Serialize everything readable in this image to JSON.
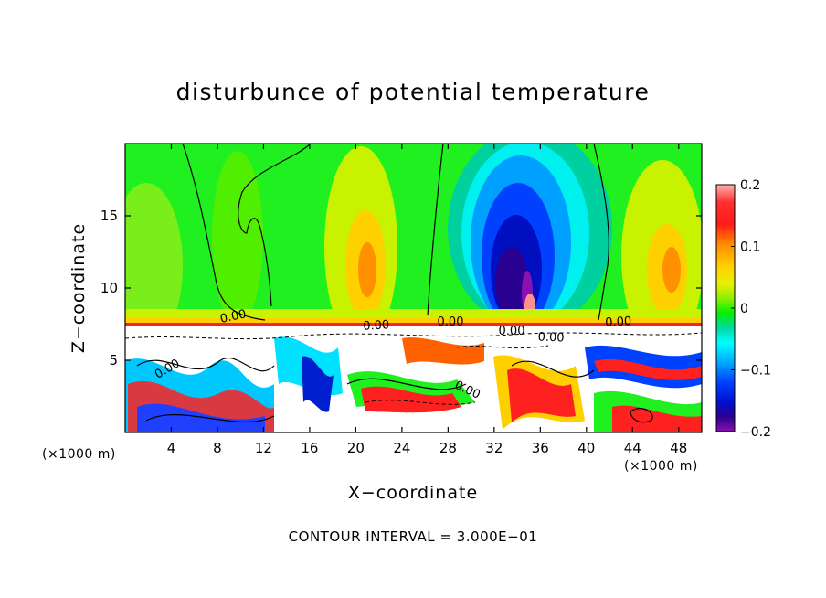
{
  "chart_data": {
    "type": "heatmap",
    "title": "disturbunce of potential temperature",
    "xlabel": "X−coordinate",
    "ylabel": "Z−coordinate",
    "x_unit": "(×1000 m)",
    "x_unit_right": "(×1000 m)",
    "xlim": [
      0,
      50
    ],
    "ylim": [
      0,
      20
    ],
    "x_ticks": [
      4,
      8,
      12,
      16,
      20,
      24,
      28,
      32,
      36,
      40,
      44,
      48
    ],
    "y_ticks": [
      5,
      10,
      15
    ],
    "colorbar": {
      "range": [
        -0.2,
        0.2
      ],
      "tick_labels": [
        "0.2",
        "0.1",
        "0",
        "−0.1",
        "−0.2"
      ],
      "tick_values": [
        0.2,
        0.1,
        0,
        -0.1,
        -0.2
      ]
    },
    "contour_labels": [
      "0.00",
      "0.00",
      "0.00",
      "0.00",
      "0.00",
      "0.00",
      "0.00",
      "0.00"
    ],
    "footer": "CONTOUR INTERVAL = 3.000E−01"
  }
}
